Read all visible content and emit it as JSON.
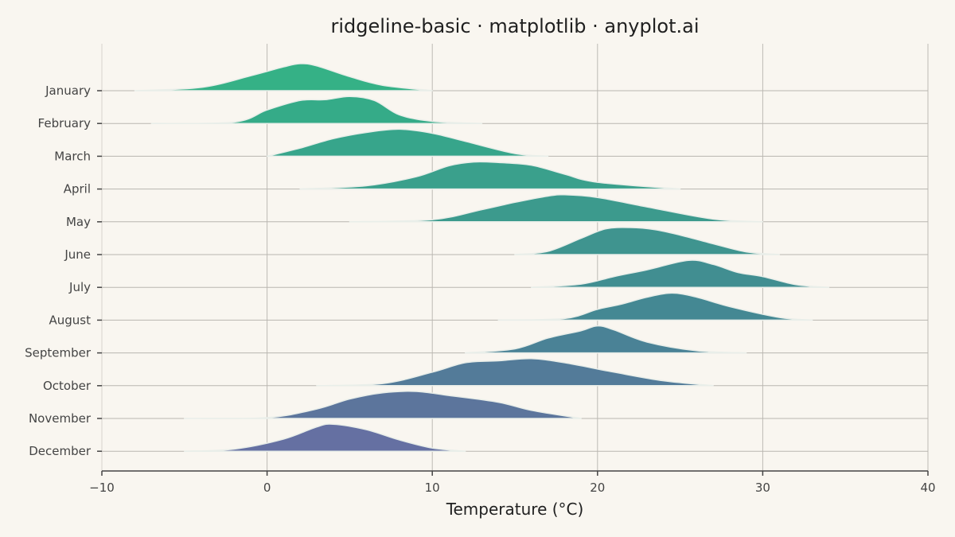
{
  "chart_data": {
    "type": "ridgeline",
    "title": "ridgeline-basic · matplotlib · anyplot.ai",
    "xlabel": "Temperature (°C)",
    "ylabel": "",
    "xlim": [
      -10,
      40
    ],
    "xticks": [
      -10,
      0,
      10,
      20,
      30,
      40
    ],
    "xtick_labels": [
      "−10",
      "0",
      "10",
      "20",
      "30",
      "40"
    ],
    "grid": "vertical",
    "categories": [
      "January",
      "February",
      "March",
      "April",
      "May",
      "June",
      "July",
      "August",
      "September",
      "October",
      "November",
      "December"
    ],
    "colors": [
      "#35b186",
      "#35ab88",
      "#37a58b",
      "#3aa08c",
      "#3c9a8d",
      "#3f948f",
      "#418e91",
      "#448893",
      "#4a8296",
      "#537b99",
      "#5c759c",
      "#6570a2"
    ],
    "series": [
      {
        "name": "January",
        "x": [
          -8,
          -4,
          -1,
          1,
          2,
          3,
          5,
          7,
          10
        ],
        "y": [
          0.0,
          0.12,
          0.55,
          0.88,
          1.0,
          0.92,
          0.52,
          0.2,
          0.0
        ]
      },
      {
        "name": "February",
        "x": [
          -7,
          -2,
          0,
          2,
          3.5,
          5,
          6.5,
          8,
          10,
          13
        ],
        "y": [
          0.0,
          0.05,
          0.5,
          0.85,
          0.88,
          1.0,
          0.85,
          0.32,
          0.08,
          0.0
        ]
      },
      {
        "name": "March",
        "x": [
          0,
          2,
          4,
          6,
          8,
          10,
          12,
          15,
          17
        ],
        "y": [
          0.0,
          0.3,
          0.65,
          0.88,
          1.0,
          0.85,
          0.55,
          0.1,
          0.0
        ]
      },
      {
        "name": "April",
        "x": [
          2,
          6,
          9,
          11,
          12.5,
          14,
          16,
          18,
          20,
          25
        ],
        "y": [
          0.0,
          0.12,
          0.45,
          0.86,
          1.0,
          0.98,
          0.88,
          0.55,
          0.25,
          0.0
        ]
      },
      {
        "name": "May",
        "x": [
          5,
          10,
          13,
          15,
          17,
          18,
          20,
          23,
          27,
          30
        ],
        "y": [
          0.0,
          0.08,
          0.45,
          0.72,
          0.95,
          1.0,
          0.9,
          0.55,
          0.1,
          0.0
        ]
      },
      {
        "name": "June",
        "x": [
          15,
          17,
          19,
          20.5,
          22,
          23.5,
          25,
          27,
          29,
          31
        ],
        "y": [
          0.0,
          0.12,
          0.6,
          0.95,
          1.0,
          0.92,
          0.72,
          0.4,
          0.1,
          0.0
        ]
      },
      {
        "name": "July",
        "x": [
          16,
          19,
          21,
          23,
          25.5,
          27,
          28.5,
          30,
          32,
          34
        ],
        "y": [
          0.0,
          0.12,
          0.4,
          0.65,
          1.0,
          0.85,
          0.55,
          0.4,
          0.1,
          0.0
        ]
      },
      {
        "name": "August",
        "x": [
          14,
          18,
          20,
          21.5,
          23,
          24.5,
          26,
          28,
          31,
          33
        ],
        "y": [
          0.0,
          0.06,
          0.4,
          0.6,
          0.85,
          1.0,
          0.85,
          0.5,
          0.1,
          0.0
        ]
      },
      {
        "name": "September",
        "x": [
          12,
          15,
          17,
          19,
          20,
          21,
          23,
          26,
          29
        ],
        "y": [
          0.0,
          0.15,
          0.55,
          0.82,
          1.0,
          0.85,
          0.4,
          0.08,
          0.0
        ]
      },
      {
        "name": "October",
        "x": [
          3,
          7,
          10,
          12,
          14,
          16,
          18,
          21,
          24,
          27
        ],
        "y": [
          0.0,
          0.08,
          0.5,
          0.85,
          0.92,
          1.0,
          0.85,
          0.5,
          0.18,
          0.0
        ]
      },
      {
        "name": "November",
        "x": [
          -5,
          0,
          3,
          5,
          7,
          9,
          11,
          14,
          16,
          19
        ],
        "y": [
          0.0,
          0.03,
          0.35,
          0.72,
          0.95,
          1.0,
          0.85,
          0.6,
          0.3,
          0.0
        ]
      },
      {
        "name": "December",
        "x": [
          -5,
          -2,
          1,
          3,
          4,
          6,
          8,
          10,
          12
        ],
        "y": [
          0.0,
          0.08,
          0.45,
          0.9,
          1.0,
          0.8,
          0.42,
          0.12,
          0.0
        ]
      }
    ]
  }
}
